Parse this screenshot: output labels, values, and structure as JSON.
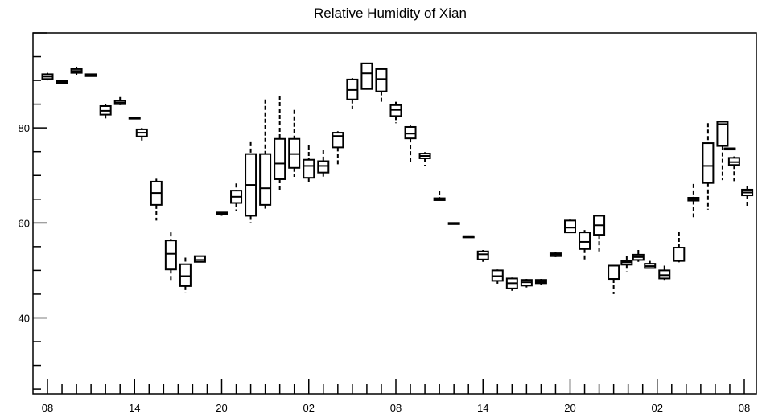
{
  "chart_data": {
    "type": "box",
    "title": "Relative Humidity of Xian",
    "xlabel": "",
    "ylabel": "",
    "ylim": [
      24,
      100
    ],
    "xlim": [
      0,
      49
    ],
    "y_ticks": [
      40,
      60,
      80
    ],
    "x_ticks": [
      {
        "pos": 1,
        "label": "08"
      },
      {
        "pos": 7,
        "label": "14"
      },
      {
        "pos": 13,
        "label": "20"
      },
      {
        "pos": 19,
        "label": "02"
      },
      {
        "pos": 25,
        "label": "08"
      },
      {
        "pos": 31,
        "label": "14"
      },
      {
        "pos": 37,
        "label": "20"
      },
      {
        "pos": 43,
        "label": "02"
      },
      {
        "pos": 49,
        "label": "08"
      }
    ],
    "grid": false,
    "boxes": [
      {
        "x": 1,
        "min": 90.0,
        "q1": 90.3,
        "median": 90.8,
        "q3": 91.3,
        "max": 91.6
      },
      {
        "x": 2,
        "min": 89.2,
        "q1": 89.5,
        "median": 89.7,
        "q3": 89.9,
        "max": 90.0
      },
      {
        "x": 3,
        "min": 91.2,
        "q1": 91.6,
        "median": 92.0,
        "q3": 92.4,
        "max": 92.9
      },
      {
        "x": 4,
        "min": 90.8,
        "q1": 90.9,
        "median": 91.1,
        "q3": 91.3,
        "max": 91.4
      },
      {
        "x": 5,
        "min": 82.0,
        "q1": 82.8,
        "median": 83.6,
        "q3": 84.6,
        "max": 85.0
      },
      {
        "x": 6,
        "min": 84.8,
        "q1": 85.0,
        "median": 85.3,
        "q3": 85.7,
        "max": 86.5
      },
      {
        "x": 7,
        "min": 82.2,
        "q1": 82.2,
        "median": 82.2,
        "q3": 82.2,
        "max": 82.2
      },
      {
        "x": 7.5,
        "min": 77.0,
        "q1": 78.2,
        "median": 79.0,
        "q3": 79.7,
        "max": 80.0
      },
      {
        "x": 8.5,
        "min": 60.5,
        "q1": 63.8,
        "median": 66.3,
        "q3": 68.7,
        "max": 69.3
      },
      {
        "x": 9.5,
        "min": 47.8,
        "q1": 50.2,
        "median": 53.5,
        "q3": 56.3,
        "max": 58.0
      },
      {
        "x": 10.5,
        "min": 45.2,
        "q1": 46.7,
        "median": 48.8,
        "q3": 51.3,
        "max": 52.7
      },
      {
        "x": 11.5,
        "min": 51.8,
        "q1": 51.8,
        "median": 52.2,
        "q3": 53.0,
        "max": 53.0
      },
      {
        "x": 13,
        "min": 61.5,
        "q1": 61.8,
        "median": 62.0,
        "q3": 62.2,
        "max": 62.3
      },
      {
        "x": 14,
        "min": 62.6,
        "q1": 64.2,
        "median": 65.5,
        "q3": 66.8,
        "max": 68.3
      },
      {
        "x": 15,
        "min": 60.0,
        "q1": 61.5,
        "median": 68.0,
        "q3": 74.5,
        "max": 77.0
      },
      {
        "x": 16,
        "min": 63.0,
        "q1": 63.8,
        "median": 67.3,
        "q3": 74.5,
        "max": 86.0
      },
      {
        "x": 17,
        "min": 67.0,
        "q1": 69.2,
        "median": 72.5,
        "q3": 77.7,
        "max": 86.8
      },
      {
        "x": 18,
        "min": 69.7,
        "q1": 71.6,
        "median": 74.5,
        "q3": 77.7,
        "max": 83.8
      },
      {
        "x": 19,
        "min": 68.2,
        "q1": 69.5,
        "median": 72.0,
        "q3": 73.3,
        "max": 76.3
      },
      {
        "x": 20,
        "min": 69.5,
        "q1": 70.6,
        "median": 72.0,
        "q3": 73.0,
        "max": 75.3
      },
      {
        "x": 21,
        "min": 72.1,
        "q1": 75.9,
        "median": 78.3,
        "q3": 79.0,
        "max": 79.3
      },
      {
        "x": 22,
        "min": 84.0,
        "q1": 86.0,
        "median": 88.0,
        "q3": 90.2,
        "max": 90.5
      },
      {
        "x": 23,
        "min": 88.2,
        "q1": 88.2,
        "median": 91.5,
        "q3": 93.6,
        "max": 93.6
      },
      {
        "x": 24,
        "min": 85.5,
        "q1": 87.7,
        "median": 90.3,
        "q3": 92.4,
        "max": 92.6
      },
      {
        "x": 25,
        "min": 81.0,
        "q1": 82.5,
        "median": 83.8,
        "q3": 84.8,
        "max": 85.5
      },
      {
        "x": 26,
        "min": 72.8,
        "q1": 77.8,
        "median": 78.8,
        "q3": 80.2,
        "max": 80.5
      },
      {
        "x": 27,
        "min": 72.0,
        "q1": 73.6,
        "median": 74.1,
        "q3": 74.6,
        "max": 74.9
      },
      {
        "x": 28,
        "min": 64.7,
        "q1": 64.8,
        "median": 65.0,
        "q3": 65.2,
        "max": 66.8
      },
      {
        "x": 29,
        "min": 59.8,
        "q1": 59.8,
        "median": 59.9,
        "q3": 60.0,
        "max": 60.0
      },
      {
        "x": 30,
        "min": 57.2,
        "q1": 57.2,
        "median": 57.2,
        "q3": 57.2,
        "max": 57.2
      },
      {
        "x": 31,
        "min": 51.8,
        "q1": 52.3,
        "median": 53.4,
        "q3": 54.0,
        "max": 54.3
      },
      {
        "x": 32,
        "min": 47.2,
        "q1": 47.8,
        "median": 48.8,
        "q3": 50.0,
        "max": 50.2
      },
      {
        "x": 33,
        "min": 45.7,
        "q1": 46.2,
        "median": 47.3,
        "q3": 48.3,
        "max": 48.5
      },
      {
        "x": 34,
        "min": 46.4,
        "q1": 46.8,
        "median": 47.5,
        "q3": 48.0,
        "max": 48.2
      },
      {
        "x": 35,
        "min": 46.9,
        "q1": 47.3,
        "median": 47.6,
        "q3": 48.0,
        "max": 48.2
      },
      {
        "x": 36,
        "min": 52.8,
        "q1": 53.0,
        "median": 53.3,
        "q3": 53.6,
        "max": 53.8
      },
      {
        "x": 37,
        "min": 58.0,
        "q1": 58.0,
        "median": 59.0,
        "q3": 60.5,
        "max": 60.9
      },
      {
        "x": 38,
        "min": 51.8,
        "q1": 54.5,
        "median": 56.0,
        "q3": 58.0,
        "max": 58.5
      },
      {
        "x": 39,
        "min": 54.0,
        "q1": 57.5,
        "median": 59.5,
        "q3": 61.5,
        "max": 61.5
      },
      {
        "x": 40,
        "min": 45.0,
        "q1": 48.2,
        "median": 48.2,
        "q3": 51.0,
        "max": 51.0
      },
      {
        "x": 40.9,
        "min": 49.8,
        "q1": 51.2,
        "median": 51.7,
        "q3": 52.0,
        "max": 53.0
      },
      {
        "x": 41.7,
        "min": 51.8,
        "q1": 52.2,
        "median": 52.8,
        "q3": 53.3,
        "max": 54.3
      },
      {
        "x": 42.5,
        "min": 50.4,
        "q1": 50.5,
        "median": 50.9,
        "q3": 51.4,
        "max": 52.0
      },
      {
        "x": 43.5,
        "min": 48.0,
        "q1": 48.3,
        "median": 49.0,
        "q3": 50.0,
        "max": 51.0
      },
      {
        "x": 44.5,
        "min": 51.7,
        "q1": 52.0,
        "median": 52.0,
        "q3": 54.8,
        "max": 58.2
      },
      {
        "x": 45.5,
        "min": 61.2,
        "q1": 64.7,
        "median": 65.0,
        "q3": 65.3,
        "max": 68.2
      },
      {
        "x": 46.5,
        "min": 62.8,
        "q1": 68.4,
        "median": 72.0,
        "q3": 76.8,
        "max": 81.0
      },
      {
        "x": 47.5,
        "min": 69.0,
        "q1": 76.2,
        "median": 80.8,
        "q3": 81.3,
        "max": 81.3
      },
      {
        "x": 48,
        "min": 75.7,
        "q1": 75.7,
        "median": 75.7,
        "q3": 75.7,
        "max": 75.7
      },
      {
        "x": 48.3,
        "min": 68.8,
        "q1": 72.2,
        "median": 72.8,
        "q3": 73.7,
        "max": 74.0
      },
      {
        "x": 49.2,
        "min": 63.3,
        "q1": 65.8,
        "median": 66.4,
        "q3": 67.0,
        "max": 67.8
      }
    ]
  }
}
